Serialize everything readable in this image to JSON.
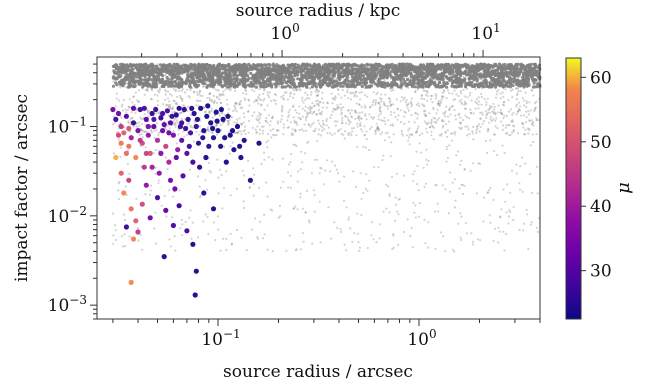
{
  "chart_data": {
    "type": "scatter",
    "xlabel": "source radius / arcsec",
    "ylabel": "impact factor / arcsec",
    "top_xlabel": "source radius / kpc",
    "colorbar_label": "μ",
    "x_scale": "log",
    "y_scale": "log",
    "xlim": [
      0.025,
      4.0
    ],
    "ylim": [
      0.0007,
      0.6
    ],
    "top_xlim": [
      0.12,
      19.2
    ],
    "x_ticks": [
      {
        "value": 0.1,
        "base": "10",
        "exp": "−1"
      },
      {
        "value": 1.0,
        "base": "10",
        "exp": "0"
      }
    ],
    "top_x_ticks": [
      {
        "value": 1.0,
        "base": "10",
        "exp": "0"
      },
      {
        "value": 10.0,
        "base": "10",
        "exp": "1"
      }
    ],
    "y_ticks": [
      {
        "value": 0.001,
        "base": "10",
        "exp": "−3"
      },
      {
        "value": 0.01,
        "base": "10",
        "exp": "−2"
      },
      {
        "value": 0.1,
        "base": "10",
        "exp": "−1"
      }
    ],
    "colorbar": {
      "min": 22.5,
      "max": 63,
      "ticks": [
        30,
        40,
        50,
        60
      ],
      "colormap": "plasma"
    },
    "grey_color": "#808080",
    "background_points": {
      "x_range": [
        0.03,
        4.0
      ],
      "y_upper_limit": 0.5,
      "note_density": "dense band near y=0.3-0.5, thinning to y=0.005"
    },
    "series": [
      {
        "kind": "colored",
        "points": [
          [
            0.03,
            0.155,
            34
          ],
          [
            0.031,
            0.12,
            28
          ],
          [
            0.032,
            0.14,
            33
          ],
          [
            0.033,
            0.1,
            45
          ],
          [
            0.034,
            0.085,
            52
          ],
          [
            0.035,
            0.13,
            29
          ],
          [
            0.036,
            0.06,
            55
          ],
          [
            0.037,
            0.075,
            40
          ],
          [
            0.038,
            0.11,
            26
          ],
          [
            0.039,
            0.045,
            58
          ],
          [
            0.04,
            0.09,
            35
          ],
          [
            0.041,
            0.155,
            27
          ],
          [
            0.042,
            0.065,
            48
          ],
          [
            0.043,
            0.035,
            44
          ],
          [
            0.044,
            0.12,
            31
          ],
          [
            0.045,
            0.08,
            38
          ],
          [
            0.046,
            0.05,
            50
          ],
          [
            0.047,
            0.14,
            25
          ],
          [
            0.048,
            0.1,
            30
          ],
          [
            0.05,
            0.07,
            42
          ],
          [
            0.051,
            0.03,
            37
          ],
          [
            0.052,
            0.125,
            26
          ],
          [
            0.053,
            0.09,
            33
          ],
          [
            0.055,
            0.06,
            46
          ],
          [
            0.056,
            0.15,
            28
          ],
          [
            0.057,
            0.04,
            41
          ],
          [
            0.058,
            0.11,
            29
          ],
          [
            0.06,
            0.08,
            35
          ],
          [
            0.061,
            0.02,
            33
          ],
          [
            0.062,
            0.135,
            24
          ],
          [
            0.063,
            0.055,
            39
          ],
          [
            0.065,
            0.1,
            27
          ],
          [
            0.066,
            0.07,
            31
          ],
          [
            0.068,
            0.155,
            26
          ],
          [
            0.07,
            0.05,
            30
          ],
          [
            0.071,
            0.12,
            25
          ],
          [
            0.073,
            0.085,
            28
          ],
          [
            0.075,
            0.04,
            27
          ],
          [
            0.076,
            0.14,
            24
          ],
          [
            0.078,
            0.1,
            26
          ],
          [
            0.08,
            0.065,
            25
          ],
          [
            0.082,
            0.16,
            23
          ],
          [
            0.085,
            0.09,
            24
          ],
          [
            0.088,
            0.13,
            23
          ],
          [
            0.09,
            0.06,
            25
          ],
          [
            0.092,
            0.11,
            23
          ],
          [
            0.095,
            0.075,
            24
          ],
          [
            0.098,
            0.145,
            23
          ],
          [
            0.1,
            0.09,
            23
          ],
          [
            0.103,
            0.06,
            24
          ],
          [
            0.106,
            0.12,
            23
          ],
          [
            0.11,
            0.04,
            23
          ],
          [
            0.115,
            0.08,
            23
          ],
          [
            0.12,
            0.055,
            23
          ],
          [
            0.125,
            0.1,
            23
          ],
          [
            0.13,
            0.045,
            23
          ],
          [
            0.135,
            0.07,
            24
          ],
          [
            0.145,
            0.025,
            23
          ],
          [
            0.16,
            0.065,
            23
          ],
          [
            0.036,
            0.025,
            46
          ],
          [
            0.034,
            0.018,
            58
          ],
          [
            0.037,
            0.012,
            55
          ],
          [
            0.039,
            0.0088,
            52
          ],
          [
            0.042,
            0.0135,
            48
          ],
          [
            0.04,
            0.0066,
            45
          ],
          [
            0.038,
            0.0055,
            58
          ],
          [
            0.046,
            0.0095,
            33
          ],
          [
            0.05,
            0.016,
            28
          ],
          [
            0.055,
            0.0115,
            31
          ],
          [
            0.06,
            0.0078,
            29
          ],
          [
            0.064,
            0.013,
            26
          ],
          [
            0.07,
            0.0068,
            28
          ],
          [
            0.075,
            0.0048,
            23
          ],
          [
            0.078,
            0.0024,
            23
          ],
          [
            0.077,
            0.0013,
            23
          ],
          [
            0.054,
            0.0035,
            24
          ],
          [
            0.037,
            0.0018,
            58
          ],
          [
            0.035,
            0.0075,
            26
          ],
          [
            0.044,
            0.022,
            38
          ],
          [
            0.058,
            0.025,
            34
          ],
          [
            0.067,
            0.028,
            30
          ],
          [
            0.085,
            0.018,
            24
          ],
          [
            0.095,
            0.012,
            24
          ],
          [
            0.033,
            0.03,
            52
          ],
          [
            0.031,
            0.045,
            60
          ],
          [
            0.033,
            0.065,
            56
          ],
          [
            0.036,
            0.095,
            50
          ],
          [
            0.043,
            0.16,
            29
          ],
          [
            0.049,
            0.155,
            27
          ],
          [
            0.054,
            0.105,
            32
          ],
          [
            0.059,
            0.13,
            27
          ],
          [
            0.064,
            0.16,
            25
          ],
          [
            0.069,
            0.095,
            26
          ],
          [
            0.074,
            0.16,
            24
          ],
          [
            0.079,
            0.12,
            25
          ],
          [
            0.084,
            0.075,
            24
          ],
          [
            0.089,
            0.17,
            23
          ],
          [
            0.094,
            0.095,
            23
          ],
          [
            0.099,
            0.115,
            23
          ],
          [
            0.104,
            0.155,
            23
          ],
          [
            0.108,
            0.075,
            23
          ],
          [
            0.112,
            0.13,
            24
          ],
          [
            0.118,
            0.09,
            23
          ],
          [
            0.128,
            0.06,
            23
          ],
          [
            0.048,
            0.12,
            30
          ],
          [
            0.052,
            0.05,
            36
          ],
          [
            0.057,
            0.085,
            33
          ],
          [
            0.062,
            0.045,
            31
          ],
          [
            0.066,
            0.11,
            27
          ],
          [
            0.072,
            0.06,
            27
          ],
          [
            0.081,
            0.035,
            24
          ],
          [
            0.087,
            0.045,
            24
          ],
          [
            0.041,
            0.07,
            44
          ],
          [
            0.045,
            0.1,
            35
          ],
          [
            0.047,
            0.035,
            40
          ],
          [
            0.053,
            0.14,
            28
          ],
          [
            0.032,
            0.08,
            48
          ],
          [
            0.035,
            0.05,
            54
          ],
          [
            0.038,
            0.16,
            30
          ],
          [
            0.044,
            0.05,
            47
          ]
        ]
      }
    ]
  }
}
